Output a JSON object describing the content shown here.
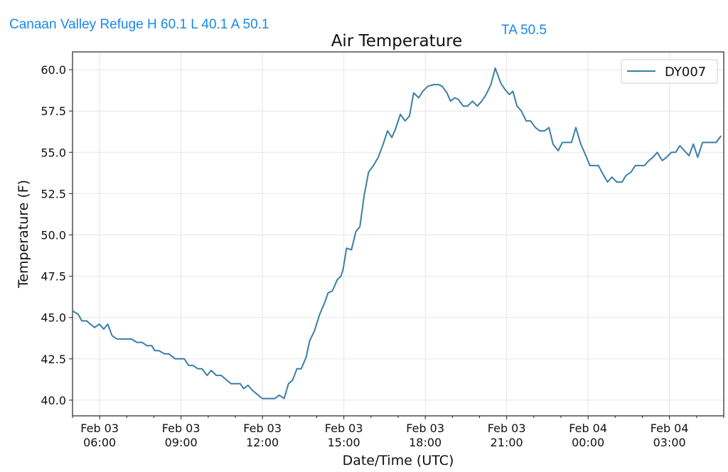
{
  "header": {
    "station_summary": "Canaan Valley Refuge H 60.1 L 40.1 A 50.1",
    "ta_readout": "TA 50.5"
  },
  "colors": {
    "line": "#3a7fa6",
    "header_text": "#1a88e8",
    "grid": "#e6e6e6"
  },
  "chart_data": {
    "type": "line",
    "title": "Air Temperature",
    "xlabel": "Date/Time (UTC)",
    "ylabel": "Temperature (F)",
    "x_units": "hours since Feb 03 05:00 UTC",
    "xlim": [
      0,
      24
    ],
    "ylim": [
      39.05,
      61.08
    ],
    "grid": true,
    "legend_position": "top-right",
    "x_ticks": [
      {
        "value": 1,
        "label_date": "Feb 03",
        "label_time": "06:00"
      },
      {
        "value": 4,
        "label_date": "Feb 03",
        "label_time": "09:00"
      },
      {
        "value": 7,
        "label_date": "Feb 03",
        "label_time": "12:00"
      },
      {
        "value": 10,
        "label_date": "Feb 03",
        "label_time": "15:00"
      },
      {
        "value": 13,
        "label_date": "Feb 03",
        "label_time": "18:00"
      },
      {
        "value": 16,
        "label_date": "Feb 03",
        "label_time": "21:00"
      },
      {
        "value": 19,
        "label_date": "Feb 04",
        "label_time": "00:00"
      },
      {
        "value": 22,
        "label_date": "Feb 04",
        "label_time": "03:00"
      }
    ],
    "y_ticks": [
      "40.0",
      "42.5",
      "45.0",
      "47.5",
      "50.0",
      "52.5",
      "55.0",
      "57.5",
      "60.0"
    ],
    "series": [
      {
        "name": "DY007",
        "x": [
          0.0,
          0.21,
          0.34,
          0.52,
          0.81,
          0.99,
          1.15,
          1.3,
          1.46,
          1.64,
          2.17,
          2.37,
          2.56,
          2.74,
          2.92,
          3.03,
          3.18,
          3.39,
          3.55,
          3.78,
          4.12,
          4.28,
          4.44,
          4.62,
          4.77,
          4.96,
          5.11,
          5.3,
          5.48,
          5.69,
          5.84,
          6.18,
          6.31,
          6.47,
          6.63,
          6.84,
          6.99,
          7.46,
          7.62,
          7.8,
          7.96,
          8.11,
          8.27,
          8.43,
          8.61,
          8.74,
          8.92,
          9.11,
          9.29,
          9.42,
          9.57,
          9.76,
          9.89,
          9.97,
          10.1,
          10.28,
          10.44,
          10.59,
          10.75,
          10.91,
          11.09,
          11.27,
          11.45,
          11.61,
          11.77,
          11.9,
          12.08,
          12.26,
          12.42,
          12.57,
          12.76,
          12.91,
          13.1,
          13.31,
          13.49,
          13.62,
          13.8,
          13.93,
          14.09,
          14.22,
          14.4,
          14.56,
          14.74,
          14.92,
          15.08,
          15.24,
          15.42,
          15.58,
          15.78,
          15.94,
          16.1,
          16.23,
          16.38,
          16.54,
          16.72,
          16.88,
          17.06,
          17.22,
          17.4,
          17.56,
          17.71,
          17.9,
          18.05,
          18.39,
          18.55,
          18.73,
          18.89,
          19.07,
          19.2,
          19.38,
          19.51,
          19.72,
          19.88,
          20.06,
          20.25,
          20.4,
          20.58,
          20.74,
          21.08,
          21.24,
          21.39,
          21.55,
          21.73,
          21.89,
          22.07,
          22.23,
          22.38,
          22.72,
          22.88,
          23.04,
          23.22,
          23.72,
          23.9
        ],
        "y": [
          45.4,
          45.2,
          44.8,
          44.8,
          44.4,
          44.6,
          44.3,
          44.6,
          43.9,
          43.7,
          43.7,
          43.5,
          43.5,
          43.3,
          43.3,
          43.0,
          43.0,
          42.8,
          42.8,
          42.5,
          42.5,
          42.1,
          42.1,
          41.9,
          41.9,
          41.5,
          41.8,
          41.5,
          41.5,
          41.2,
          41.0,
          41.0,
          40.7,
          40.9,
          40.6,
          40.3,
          40.1,
          40.1,
          40.3,
          40.1,
          41.0,
          41.2,
          41.9,
          41.9,
          42.6,
          43.6,
          44.2,
          45.2,
          45.9,
          46.5,
          46.6,
          47.3,
          47.5,
          47.9,
          49.2,
          49.1,
          50.2,
          50.5,
          52.4,
          53.8,
          54.2,
          54.7,
          55.5,
          56.3,
          55.9,
          56.4,
          57.3,
          56.9,
          57.2,
          58.6,
          58.3,
          58.7,
          59.0,
          59.1,
          59.1,
          59.0,
          58.6,
          58.1,
          58.3,
          58.2,
          57.8,
          57.8,
          58.1,
          57.8,
          58.1,
          58.5,
          59.1,
          60.1,
          59.2,
          58.8,
          58.5,
          58.7,
          57.8,
          57.5,
          56.9,
          56.9,
          56.5,
          56.3,
          56.3,
          56.5,
          55.5,
          55.1,
          55.6,
          55.6,
          56.5,
          55.5,
          54.9,
          54.2,
          54.2,
          54.2,
          53.8,
          53.2,
          53.5,
          53.2,
          53.2,
          53.6,
          53.8,
          54.2,
          54.2,
          54.5,
          54.7,
          55.0,
          54.5,
          54.7,
          55.0,
          55.0,
          55.4,
          54.8,
          55.5,
          54.7,
          55.6,
          55.6,
          56.0
        ]
      }
    ]
  }
}
